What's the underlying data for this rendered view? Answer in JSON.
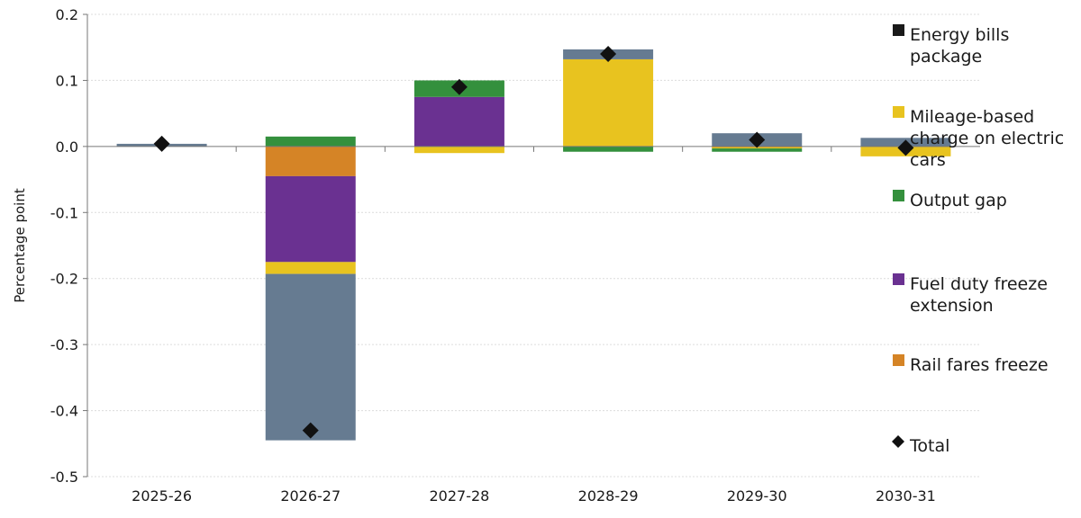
{
  "chart_data": {
    "type": "bar",
    "stacked": true,
    "title": "",
    "xlabel": "",
    "ylabel": "Percentage point",
    "ylim": [
      -0.5,
      0.2
    ],
    "yticks": [
      "0.2",
      "0.1",
      "0.0",
      "-0.1",
      "-0.2",
      "-0.3",
      "-0.4",
      "-0.5"
    ],
    "grid": true,
    "legend_position": "right",
    "categories": [
      "2025-26",
      "2026-27",
      "2027-28",
      "2028-29",
      "2029-30",
      "2030-31"
    ],
    "series": [
      {
        "name": "Rail fares freeze",
        "color": "#d58426",
        "values": [
          0,
          -0.045,
          0,
          0,
          -0.001,
          0
        ]
      },
      {
        "name": "Fuel duty freeze extension",
        "color": "#6a3191",
        "values": [
          0,
          -0.13,
          0.075,
          0,
          0,
          0
        ]
      },
      {
        "name": "Mileage-based charge on electric cars",
        "color": "#e8c31f",
        "values": [
          0,
          -0.018,
          -0.01,
          0.132,
          -0.002,
          -0.015
        ]
      },
      {
        "name": "Energy bills package",
        "color": "#667b91",
        "legend_color": "#1a1a1a",
        "values": [
          0.004,
          -0.252,
          0,
          0.015,
          0.02,
          0.013
        ]
      },
      {
        "name": "Output gap",
        "color": "#34903d",
        "values": [
          0,
          0.015,
          0.025,
          -0.008,
          -0.005,
          0
        ]
      }
    ],
    "total": {
      "name": "Total",
      "color": "#111111",
      "values": [
        0.004,
        -0.43,
        0.09,
        0.14,
        0.01,
        -0.002
      ]
    },
    "legend": [
      "Energy bills package",
      "Mileage-based charge on electric cars",
      "Output gap",
      "Fuel duty freeze extension",
      "Rail fares freeze",
      "Total"
    ]
  }
}
